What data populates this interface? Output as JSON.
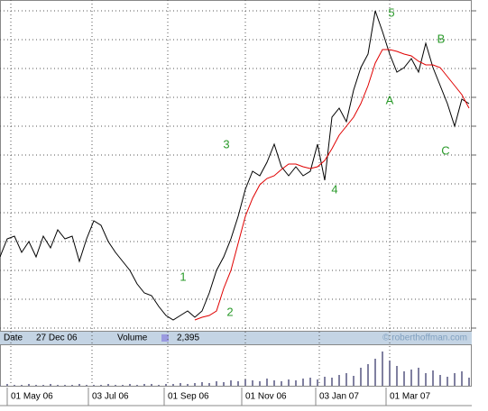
{
  "chart_data": {
    "type": "line",
    "x": [
      0,
      4,
      8,
      12,
      16,
      20,
      24,
      28,
      32,
      36,
      40,
      44,
      48,
      52,
      56,
      60,
      64,
      68,
      72,
      76,
      80,
      84,
      88,
      92,
      96,
      100,
      104,
      108,
      112,
      116,
      120,
      124,
      128,
      132,
      136,
      140,
      144,
      148,
      152,
      156,
      160,
      164,
      168,
      172,
      176,
      180,
      184,
      188,
      192,
      196,
      200,
      204,
      208,
      212,
      216,
      220,
      224,
      228,
      232,
      236,
      240,
      244,
      248,
      252,
      256,
      260
    ],
    "xlim": [
      0,
      261
    ],
    "xticks": [
      {
        "value": 6,
        "label": "01 May 06"
      },
      {
        "value": 51,
        "label": "03 Jul 06"
      },
      {
        "value": 93,
        "label": "01 Sep 06"
      },
      {
        "value": 136,
        "label": "01 Nov 06"
      },
      {
        "value": 177,
        "label": "03 Jan 07"
      },
      {
        "value": 216,
        "label": "01 Mar 07"
      }
    ],
    "ylim": [
      0,
      92
    ],
    "yticks": [
      1,
      9,
      17,
      25,
      33,
      41,
      49,
      57,
      65,
      73,
      81,
      89
    ],
    "grid": true,
    "series": [
      {
        "color": "#000000",
        "values": [
          20.75,
          25.75,
          26.5,
          22,
          25,
          20.75,
          26.5,
          23.25,
          28.25,
          25.75,
          26.5,
          19.5,
          25.75,
          30.75,
          29.5,
          25,
          22,
          19.5,
          17,
          13.25,
          10.75,
          10,
          7,
          4.5,
          3.25,
          4.5,
          5.75,
          4,
          5.75,
          10.75,
          17,
          20.75,
          25.75,
          32,
          39.5,
          44.5,
          43.25,
          47,
          52,
          45.75,
          43.25,
          45.75,
          43.25,
          44.5,
          52,
          42,
          59.5,
          62,
          58.25,
          67,
          73.25,
          77,
          89,
          83.25,
          77,
          72,
          73.25,
          75.75,
          72,
          80,
          73.25,
          68.25,
          63.25,
          57,
          64.5,
          63.25
        ]
      },
      {
        "color": "#e00000",
        "values": [
          null,
          null,
          null,
          null,
          null,
          null,
          null,
          null,
          null,
          null,
          null,
          null,
          null,
          null,
          null,
          null,
          null,
          null,
          null,
          null,
          null,
          null,
          null,
          null,
          null,
          null,
          null,
          3.25,
          4,
          4.5,
          5.75,
          12,
          17,
          24.5,
          32,
          37,
          40.75,
          42.5,
          43.25,
          45,
          46.5,
          46.5,
          45.75,
          45.25,
          45.75,
          47.5,
          50.75,
          54.5,
          57,
          59.5,
          63.25,
          68.25,
          74.5,
          78.25,
          78.25,
          77.75,
          77,
          76.5,
          75,
          74,
          74,
          73.25,
          70.75,
          68.25,
          65.75,
          62
        ]
      }
    ],
    "volume": {
      "color": "#8080a0",
      "ylim": [
        0,
        44
      ],
      "values": [
        1,
        2,
        1,
        1,
        2,
        1,
        1,
        2,
        1,
        1,
        1,
        2,
        1,
        1,
        1,
        2,
        1,
        1,
        2,
        1,
        2,
        2,
        1,
        2,
        2,
        3,
        2,
        3,
        4,
        3,
        5,
        4,
        6,
        5,
        7,
        6,
        5,
        8,
        6,
        5,
        7,
        6,
        8,
        9,
        7,
        10,
        9,
        12,
        14,
        11,
        20,
        24,
        30,
        38,
        28,
        22,
        16,
        18,
        20,
        14,
        17,
        12,
        10,
        14,
        16,
        9
      ]
    },
    "annotations": [
      "1",
      "2",
      "3",
      "4",
      "5",
      "A",
      "B",
      "C"
    ],
    "annotation_color": "#2a9a2a",
    "info": {
      "date_label": "Date",
      "date": "27 Dec 06",
      "volume_label": "Volume",
      "volume": "2,395",
      "credit": "© roberthoffman.com"
    }
  }
}
